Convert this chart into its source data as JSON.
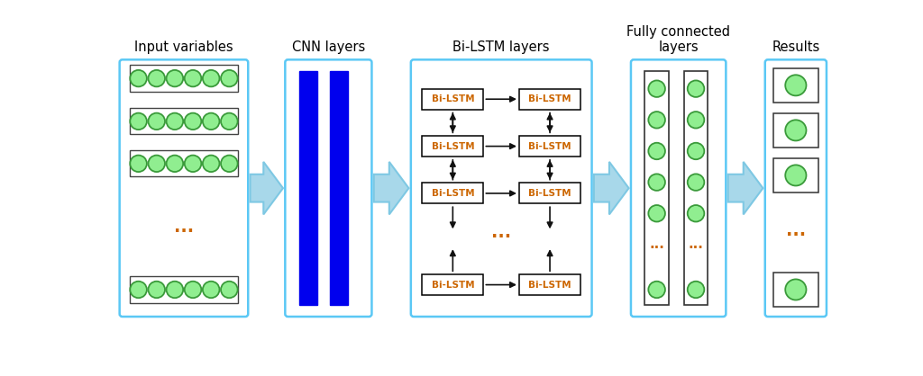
{
  "title_color": "#000000",
  "box_edge_color": "#5BC8F5",
  "box_bg": "#FFFFFF",
  "green_circle_fill": "#90EE90",
  "green_circle_edge": "#3A9A3A",
  "blue_bar_color": "#0000EE",
  "arrow_blue_fill": "#A8D8EA",
  "arrow_blue_edge": "#7EC8E3",
  "lstm_box_edge": "#000000",
  "lstm_text_color": "#CC6600",
  "dots_color": "#CC6600",
  "black_arrow_color": "#111111",
  "section_titles": [
    "Input variables",
    "CNN layers",
    "Bi-LSTM layers",
    "Fully connected\nlayers",
    "Results"
  ],
  "title_fontsize": 10.5,
  "lstm_fontsize": 7.5
}
